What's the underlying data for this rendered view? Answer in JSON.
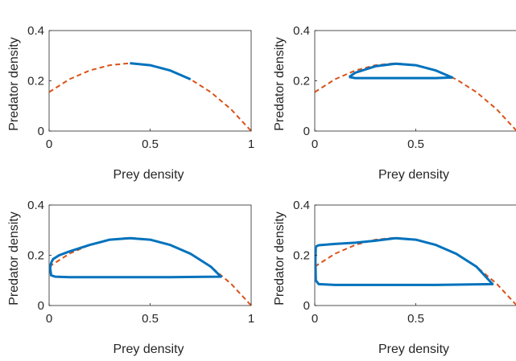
{
  "chart_data": [
    {
      "type": "line",
      "xlabel": "Prey density",
      "ylabel": "Predator density",
      "xlim": [
        0,
        1
      ],
      "ylim": [
        0,
        0.4
      ],
      "xticks": [
        0,
        0.5,
        1
      ],
      "xticklabels": [
        "0",
        "0.5",
        "1"
      ],
      "yticks": [
        0,
        0.2,
        0.4
      ],
      "yticklabels": [
        "0",
        "0.2",
        "0.4"
      ],
      "series": [
        {
          "style": "dashed",
          "color": "#D95319",
          "x": [
            0,
            0.1,
            0.2,
            0.3,
            0.4,
            0.5,
            0.6,
            0.7,
            0.8,
            0.9,
            1.0
          ],
          "y": [
            0.155,
            0.206,
            0.241,
            0.262,
            0.27,
            0.262,
            0.241,
            0.206,
            0.155,
            0.087,
            0.0
          ]
        },
        {
          "style": "solid",
          "color": "#0072BD",
          "x": [
            0.4,
            0.5,
            0.6,
            0.7
          ],
          "y": [
            0.27,
            0.262,
            0.241,
            0.206
          ]
        }
      ]
    },
    {
      "type": "line",
      "xlabel": "Prey density",
      "ylabel": "Predator density",
      "xlim": [
        0,
        1
      ],
      "ylim": [
        0,
        0.4
      ],
      "xticks": [
        0,
        0.5
      ],
      "xticklabels": [
        "0",
        "0.5"
      ],
      "yticks": [
        0,
        0.2,
        0.4
      ],
      "yticklabels": [
        "0",
        "0.2",
        "0.4"
      ],
      "series": [
        {
          "style": "dashed",
          "color": "#D95319",
          "x": [
            0,
            0.1,
            0.2,
            0.3,
            0.4,
            0.5,
            0.6,
            0.7,
            0.8,
            0.9,
            1.0
          ],
          "y": [
            0.155,
            0.206,
            0.241,
            0.262,
            0.27,
            0.262,
            0.241,
            0.206,
            0.155,
            0.087,
            0.0
          ]
        },
        {
          "style": "solid",
          "color": "#0072BD",
          "x": [
            0.17,
            0.2,
            0.3,
            0.4,
            0.5,
            0.6,
            0.68,
            0.6,
            0.5,
            0.4,
            0.3,
            0.2,
            0.17
          ],
          "y": [
            0.215,
            0.232,
            0.258,
            0.268,
            0.262,
            0.241,
            0.213,
            0.211,
            0.211,
            0.211,
            0.211,
            0.211,
            0.215
          ]
        }
      ]
    },
    {
      "type": "line",
      "xlabel": "Prey density",
      "ylabel": "Predator density",
      "xlim": [
        0,
        1
      ],
      "ylim": [
        0,
        0.4
      ],
      "xticks": [
        0,
        0.5,
        1
      ],
      "xticklabels": [
        "0",
        "0.5",
        "1"
      ],
      "yticks": [
        0,
        0.2,
        0.4
      ],
      "yticklabels": [
        "0",
        "0.2",
        "0.4"
      ],
      "series": [
        {
          "style": "dashed",
          "color": "#D95319",
          "x": [
            0,
            0.1,
            0.2,
            0.3,
            0.4,
            0.5,
            0.6,
            0.7,
            0.8,
            0.9,
            1.0
          ],
          "y": [
            0.155,
            0.206,
            0.241,
            0.262,
            0.27,
            0.262,
            0.241,
            0.206,
            0.155,
            0.087,
            0.0
          ]
        },
        {
          "style": "solid",
          "color": "#0072BD",
          "x": [
            0.01,
            0.02,
            0.05,
            0.1,
            0.2,
            0.3,
            0.4,
            0.5,
            0.6,
            0.7,
            0.8,
            0.85,
            0.6,
            0.3,
            0.1,
            0.03,
            0.01,
            0.005,
            0.01
          ],
          "y": [
            0.17,
            0.185,
            0.2,
            0.215,
            0.241,
            0.262,
            0.268,
            0.262,
            0.241,
            0.206,
            0.155,
            0.115,
            0.113,
            0.113,
            0.113,
            0.115,
            0.12,
            0.15,
            0.17
          ]
        }
      ]
    },
    {
      "type": "line",
      "xlabel": "Prey density",
      "ylabel": "Predator density",
      "xlim": [
        0,
        1
      ],
      "ylim": [
        0,
        0.4
      ],
      "xticks": [
        0,
        0.5
      ],
      "xticklabels": [
        "0",
        "0.5"
      ],
      "yticks": [
        0,
        0.2,
        0.4
      ],
      "yticklabels": [
        "0",
        "0.2",
        "0.4"
      ],
      "series": [
        {
          "style": "dashed",
          "color": "#D95319",
          "x": [
            0,
            0.1,
            0.2,
            0.3,
            0.4,
            0.5,
            0.6,
            0.7,
            0.8,
            0.9,
            1.0
          ],
          "y": [
            0.155,
            0.206,
            0.241,
            0.262,
            0.27,
            0.262,
            0.241,
            0.206,
            0.155,
            0.087,
            0.0
          ]
        },
        {
          "style": "solid",
          "color": "#0072BD",
          "x": [
            0.005,
            0.02,
            0.1,
            0.2,
            0.3,
            0.4,
            0.5,
            0.6,
            0.7,
            0.8,
            0.88,
            0.6,
            0.3,
            0.1,
            0.02,
            0.005,
            0.003,
            0.005
          ],
          "y": [
            0.235,
            0.24,
            0.245,
            0.25,
            0.258,
            0.268,
            0.262,
            0.241,
            0.206,
            0.155,
            0.085,
            0.082,
            0.082,
            0.082,
            0.085,
            0.1,
            0.18,
            0.235
          ]
        }
      ]
    }
  ]
}
